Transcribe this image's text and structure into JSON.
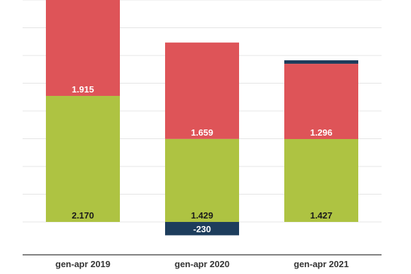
{
  "chart_data": {
    "type": "bar",
    "stacked": true,
    "categories": [
      "gen-apr 2019",
      "gen-apr 2020",
      "gen-apr 2021"
    ],
    "series": [
      {
        "values": [
          2170,
          1429,
          1427
        ],
        "labels": [
          "2.170",
          "1.429",
          "1.427"
        ],
        "color": "#aec342",
        "label_color": "#1a1a1a"
      },
      {
        "values": [
          1915,
          1659,
          1296
        ],
        "labels": [
          "1.915",
          "1.659",
          "1.296"
        ],
        "color": "#de5458",
        "label_color": "#ffffff"
      },
      {
        "values": [
          null,
          -230,
          60
        ],
        "labels": [
          "",
          "-230",
          ""
        ],
        "color": "#1d3d5c",
        "label_color": "#ffffff"
      }
    ],
    "ylim": [
      -230,
      4085
    ],
    "grid": true,
    "legend": "none",
    "colors": {
      "grid": "#e4e4e4",
      "axis": "#555555",
      "tick_text": "#333333"
    }
  }
}
